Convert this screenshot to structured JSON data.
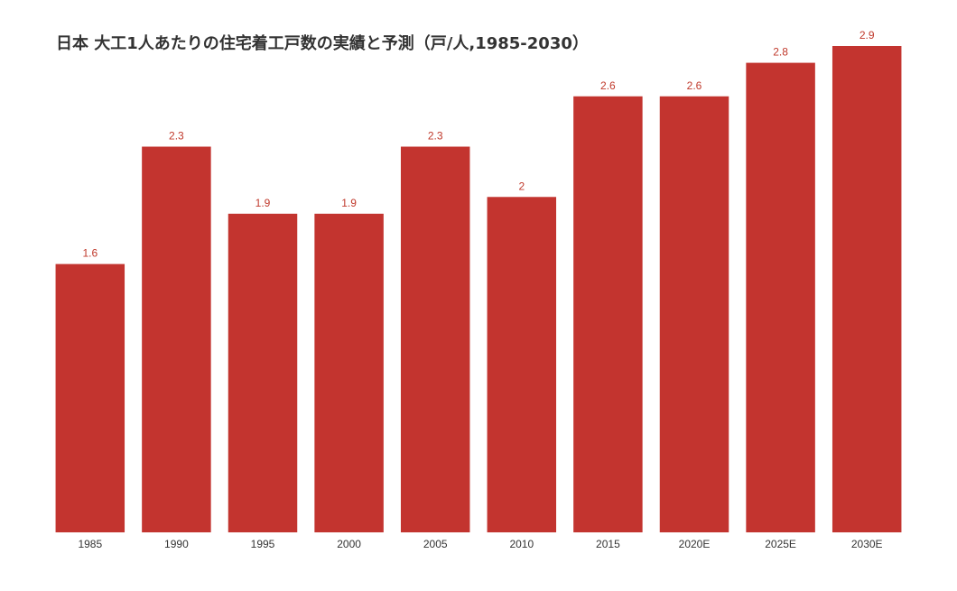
{
  "chart_data": {
    "type": "bar",
    "title": "日本 大工1人あたりの住宅着工戸数の実績と予測（戸/人,1985-2030）",
    "categories": [
      "1985",
      "1990",
      "1995",
      "2000",
      "2005",
      "2010",
      "2015",
      "2020E",
      "2025E",
      "2030E"
    ],
    "values": [
      1.6,
      2.3,
      1.9,
      1.9,
      2.3,
      2,
      2.6,
      2.6,
      2.8,
      2.9
    ],
    "data_labels": [
      "1.6",
      "2.3",
      "1.9",
      "1.9",
      "2.3",
      "2",
      "2.6",
      "2.6",
      "2.8",
      "2.9"
    ],
    "xlabel": "",
    "ylabel": "",
    "ylim": [
      0,
      2.9
    ],
    "grid": false,
    "legend": "none",
    "bar_color": "#c3342f",
    "label_color": "#c0392b"
  }
}
